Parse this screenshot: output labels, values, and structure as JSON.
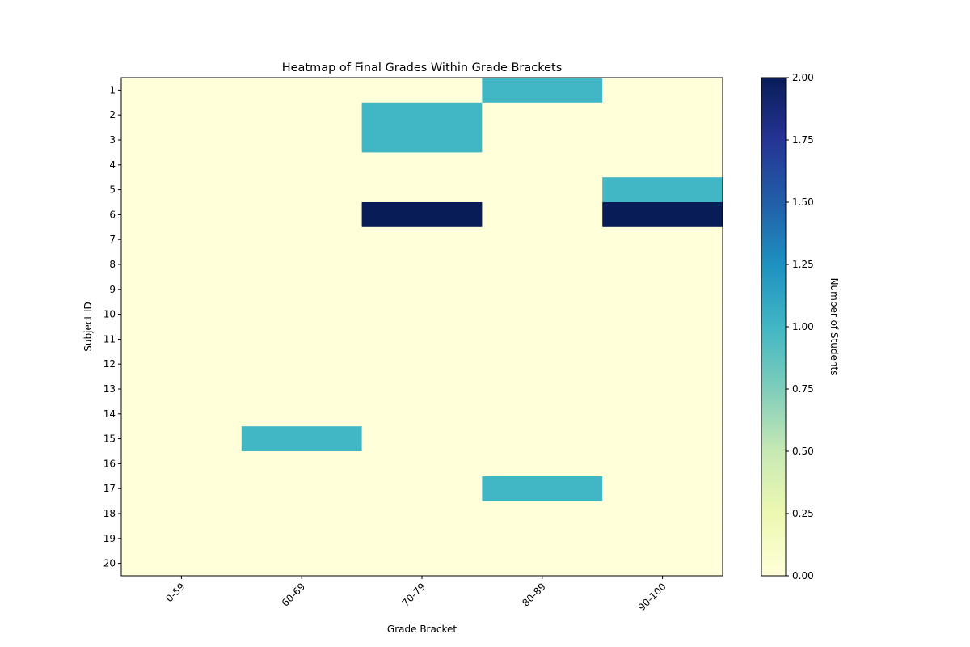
{
  "chart_data": {
    "type": "heatmap",
    "title": "Heatmap of Final Grades Within Grade Brackets",
    "xlabel": "Grade Bracket",
    "ylabel": "Subject ID",
    "x_categories": [
      "0-59",
      "60-69",
      "70-79",
      "80-89",
      "90-100"
    ],
    "y_categories": [
      "1",
      "2",
      "3",
      "4",
      "5",
      "6",
      "7",
      "8",
      "9",
      "10",
      "11",
      "12",
      "13",
      "14",
      "15",
      "16",
      "17",
      "18",
      "19",
      "20"
    ],
    "values": [
      [
        0,
        0,
        0,
        1,
        0
      ],
      [
        0,
        0,
        1,
        0,
        0
      ],
      [
        0,
        0,
        1,
        0,
        0
      ],
      [
        0,
        0,
        0,
        0,
        0
      ],
      [
        0,
        0,
        0,
        0,
        1
      ],
      [
        0,
        0,
        2,
        0,
        2
      ],
      [
        0,
        0,
        0,
        0,
        0
      ],
      [
        0,
        0,
        0,
        0,
        0
      ],
      [
        0,
        0,
        0,
        0,
        0
      ],
      [
        0,
        0,
        0,
        0,
        0
      ],
      [
        0,
        0,
        0,
        0,
        0
      ],
      [
        0,
        0,
        0,
        0,
        0
      ],
      [
        0,
        0,
        0,
        0,
        0
      ],
      [
        0,
        0,
        0,
        0,
        0
      ],
      [
        0,
        1,
        0,
        0,
        0
      ],
      [
        0,
        0,
        0,
        0,
        0
      ],
      [
        0,
        0,
        0,
        1,
        0
      ],
      [
        0,
        0,
        0,
        0,
        0
      ],
      [
        0,
        0,
        0,
        0,
        0
      ],
      [
        0,
        0,
        0,
        0,
        0
      ]
    ],
    "colormap": "YlGnBu",
    "colorbar": {
      "label": "Number of Students",
      "range": [
        0,
        2
      ],
      "ticks": [
        "0.00",
        "0.25",
        "0.50",
        "0.75",
        "1.00",
        "1.25",
        "1.50",
        "1.75",
        "2.00"
      ]
    },
    "grid": false,
    "x_tick_rotation": 45
  }
}
